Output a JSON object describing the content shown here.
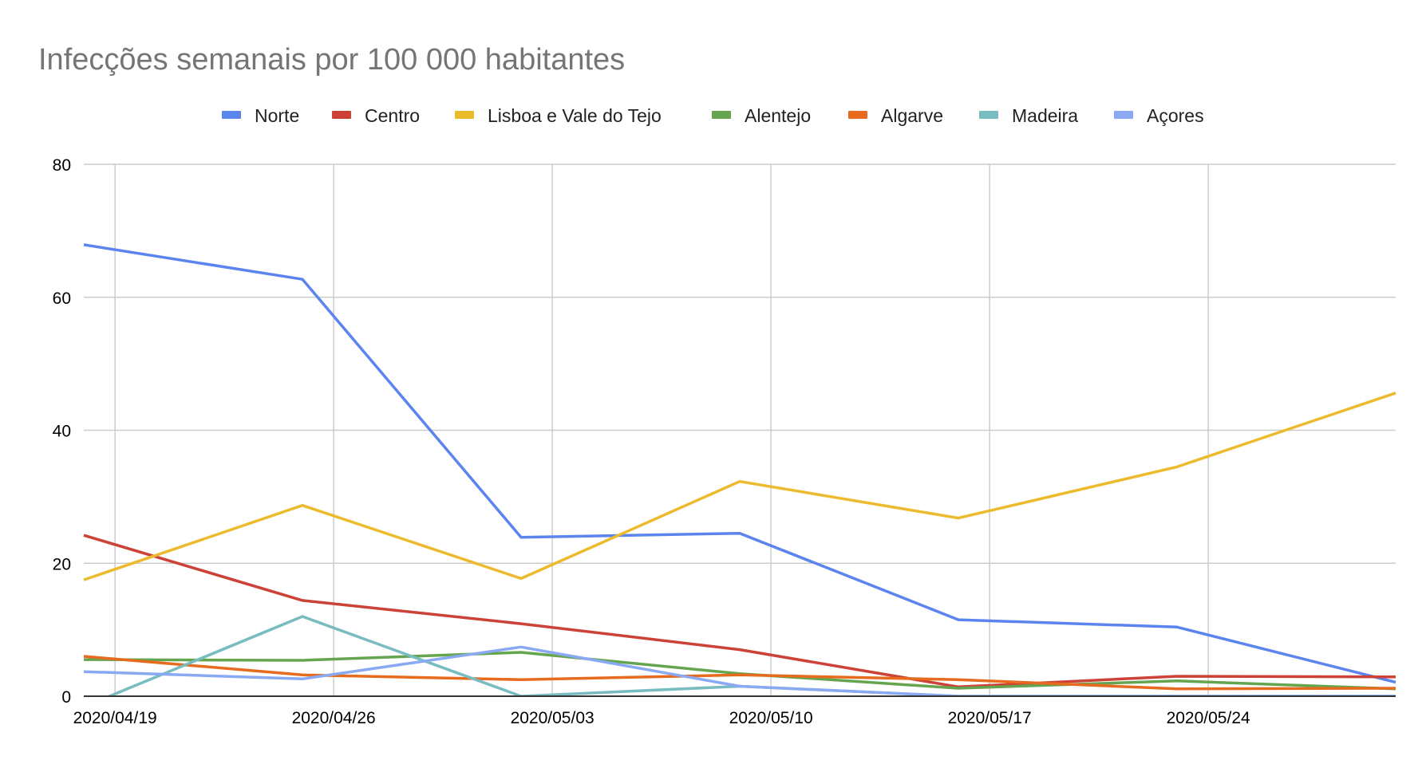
{
  "chart_data": {
    "type": "line",
    "title": "Infecções semanais por 100 000 habitantes",
    "xlabel": "",
    "ylabel": "",
    "x": [
      "2020/04/18",
      "2020/04/25",
      "2020/05/02",
      "2020/05/09",
      "2020/05/16",
      "2020/05/23",
      "2020/05/30"
    ],
    "x_ticks": [
      "2020/04/19",
      "2020/04/26",
      "2020/05/03",
      "2020/05/10",
      "2020/05/17",
      "2020/05/24"
    ],
    "y_ticks": [
      0,
      20,
      40,
      60,
      80
    ],
    "ylim": [
      0,
      80
    ],
    "grid": true,
    "legend_position": "top",
    "series": [
      {
        "name": "Norte",
        "color": "#5b84ee",
        "values": [
          67.9,
          62.7,
          23.9,
          24.5,
          11.5,
          10.4,
          2.1
        ]
      },
      {
        "name": "Centro",
        "color": "#cc4236",
        "values": [
          24.2,
          14.4,
          10.9,
          7.0,
          1.4,
          3.0,
          2.9
        ]
      },
      {
        "name": "Lisboa e Vale do Tejo",
        "color": "#ecbb2d",
        "values": [
          17.5,
          28.7,
          17.7,
          32.3,
          26.8,
          34.5,
          45.6
        ]
      },
      {
        "name": "Alentejo",
        "color": "#65a54f",
        "values": [
          5.5,
          5.4,
          6.6,
          3.4,
          1.2,
          2.3,
          1.1
        ]
      },
      {
        "name": "Algarve",
        "color": "#e66b1e",
        "values": [
          6.0,
          3.2,
          2.5,
          3.2,
          2.5,
          1.1,
          1.2
        ]
      },
      {
        "name": "Madeira",
        "color": "#78bcbf",
        "values": [
          -1.6,
          12.0,
          0,
          1.5,
          0,
          0,
          0
        ]
      },
      {
        "name": "Açores",
        "color": "#8aa9f3",
        "values": [
          3.7,
          2.6,
          7.4,
          1.5,
          0,
          0,
          0
        ]
      }
    ]
  }
}
